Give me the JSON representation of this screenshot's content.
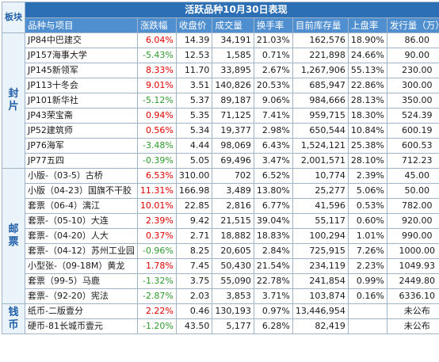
{
  "title": "活跃品种10月30日表现",
  "section_header": "板块",
  "columns": [
    "品种与项目",
    "涨跌幅",
    "收盘价",
    "成交量",
    "换手率",
    "目前库存量",
    "上盘率",
    "发行量（万）"
  ],
  "sections": [
    {
      "label": "封片",
      "rows": [
        {
          "name": "JP84中巴建交",
          "change": "6.04%",
          "trend": "up",
          "close": "14.39",
          "volume": "34,191",
          "turnover": "21.03%",
          "inventory": "162,576",
          "rate": "18.90%",
          "issue": "86.00"
        },
        {
          "name": "JP157海事大学",
          "change": "-5.43%",
          "trend": "down",
          "close": "12.53",
          "volume": "1,585",
          "turnover": "0.71%",
          "inventory": "221,898",
          "rate": "24.66%",
          "issue": "90.00"
        },
        {
          "name": "JP145新领军",
          "change": "8.33%",
          "trend": "up",
          "close": "11.70",
          "volume": "33,895",
          "turnover": "2.67%",
          "inventory": "1,267,906",
          "rate": "55.13%",
          "issue": "230.00"
        },
        {
          "name": "JP113十冬会",
          "change": "9.01%",
          "trend": "up",
          "close": "3.51",
          "volume": "140,826",
          "turnover": "20.53%",
          "inventory": "685,947",
          "rate": "22.86%",
          "issue": "300.00"
        },
        {
          "name": "JP101新华社",
          "change": "-5.12%",
          "trend": "down",
          "close": "5.37",
          "volume": "89,187",
          "turnover": "9.06%",
          "inventory": "984,666",
          "rate": "28.13%",
          "issue": "350.00"
        },
        {
          "name": "JP43荣宝斋",
          "change": "0.94%",
          "trend": "up",
          "close": "5.35",
          "volume": "71,125",
          "turnover": "7.41%",
          "inventory": "959,715",
          "rate": "18.30%",
          "issue": "524.39"
        },
        {
          "name": "JP52建筑师",
          "change": "0.56%",
          "trend": "up",
          "close": "5.34",
          "volume": "19,377",
          "turnover": "2.98%",
          "inventory": "650,544",
          "rate": "10.84%",
          "issue": "600.19"
        },
        {
          "name": "JP76海军",
          "change": "-3.48%",
          "trend": "down",
          "close": "4.44",
          "volume": "98,069",
          "turnover": "6.43%",
          "inventory": "1,524,121",
          "rate": "25.38%",
          "issue": "600.53"
        },
        {
          "name": "JP77五四",
          "change": "-0.39%",
          "trend": "down",
          "close": "5.05",
          "volume": "69,496",
          "turnover": "3.47%",
          "inventory": "2,001,571",
          "rate": "28.10%",
          "issue": "712.23"
        }
      ]
    },
    {
      "label": "邮票",
      "rows": [
        {
          "name": "小版-（03-5）古桥",
          "change": "6.53%",
          "trend": "up",
          "close": "310.00",
          "volume": "702",
          "turnover": "6.52%",
          "inventory": "10,774",
          "rate": "2.39%",
          "issue": "45.00"
        },
        {
          "name": "小版（04-23）国旗不干胶",
          "change": "11.31%",
          "trend": "up",
          "close": "166.98",
          "volume": "3,489",
          "turnover": "13.80%",
          "inventory": "25,277",
          "rate": "5.06%",
          "issue": "50.00"
        },
        {
          "name": "套票（06-4）漓江",
          "change": "10.01%",
          "trend": "up",
          "close": "22.85",
          "volume": "2,816",
          "turnover": "6.77%",
          "inventory": "41,596",
          "rate": "0.53%",
          "issue": "782.00"
        },
        {
          "name": "套票-（05-10）大连",
          "change": "2.39%",
          "trend": "up",
          "close": "9.42",
          "volume": "21,515",
          "turnover": "39.04%",
          "inventory": "55,117",
          "rate": "0.60%",
          "issue": "920.00"
        },
        {
          "name": "套票-（04-20）人大",
          "change": "0.37%",
          "trend": "up",
          "close": "2.71",
          "volume": "18,882",
          "turnover": "18.83%",
          "inventory": "100,294",
          "rate": "1.01%",
          "issue": "990.00"
        },
        {
          "name": "套票-（04-12）苏州工业园",
          "change": "-0.96%",
          "trend": "down",
          "close": "8.25",
          "volume": "20,605",
          "turnover": "2.84%",
          "inventory": "725,915",
          "rate": "7.26%",
          "issue": "1000.00"
        },
        {
          "name": "小型张-（09-18M）黄龙",
          "change": "1.78%",
          "trend": "up",
          "close": "7.45",
          "volume": "50,430",
          "turnover": "21.54%",
          "inventory": "234,119",
          "rate": "2.23%",
          "issue": "1049.93"
        },
        {
          "name": "套票（99-5）马鹿",
          "change": "-1.32%",
          "trend": "down",
          "close": "3.75",
          "volume": "55,090",
          "turnover": "22.78%",
          "inventory": "241,854",
          "rate": "0.99%",
          "issue": "2449.80"
        },
        {
          "name": "套票-（92-20）宪法",
          "change": "-2.87%",
          "trend": "down",
          "close": "2.03",
          "volume": "3,853",
          "turnover": "3.71%",
          "inventory": "103,874",
          "rate": "0.16%",
          "issue": "6336.10"
        }
      ]
    },
    {
      "label": "钱币",
      "rows": [
        {
          "name": "纸币-二版壹分",
          "change": "2.22%",
          "trend": "up",
          "close": "0.46",
          "volume": "130,193",
          "turnover": "0.97%",
          "inventory": "13,446,954",
          "rate": "",
          "issue": "未公布"
        },
        {
          "name": "硬币-81长城币壹元",
          "change": "-1.20%",
          "trend": "down",
          "close": "43.50",
          "volume": "5,177",
          "turnover": "6.28%",
          "inventory": "82,419",
          "rate": "",
          "issue": "未公布"
        }
      ]
    }
  ],
  "colors": {
    "title_bg": "#2c6fb4",
    "header_bg": "#4f8fd0",
    "section_text": "#1f5fa8",
    "up": "#e00000",
    "down": "#2e9a2e",
    "grid": "#9fb4c9"
  }
}
